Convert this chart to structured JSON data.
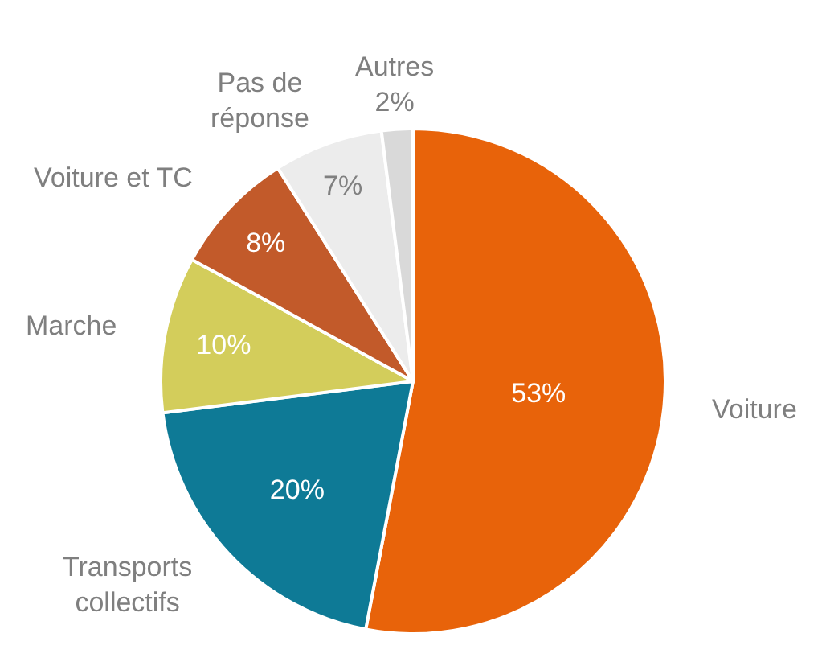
{
  "chart_data": {
    "type": "pie",
    "categories": [
      "Voiture",
      "Transports\ncollectifs",
      "Marche",
      "Voiture et TC",
      "Pas de\nréponse",
      "Autres"
    ],
    "values": [
      53,
      20,
      10,
      8,
      7,
      2
    ],
    "colors": [
      "#e8630a",
      "#0e7a96",
      "#d3cd5b",
      "#c25a2a",
      "#ececec",
      "#d9d9d9"
    ],
    "value_labels": [
      "53%",
      "20%",
      "10%",
      "8%",
      "7%",
      "2%"
    ],
    "legend": false
  }
}
